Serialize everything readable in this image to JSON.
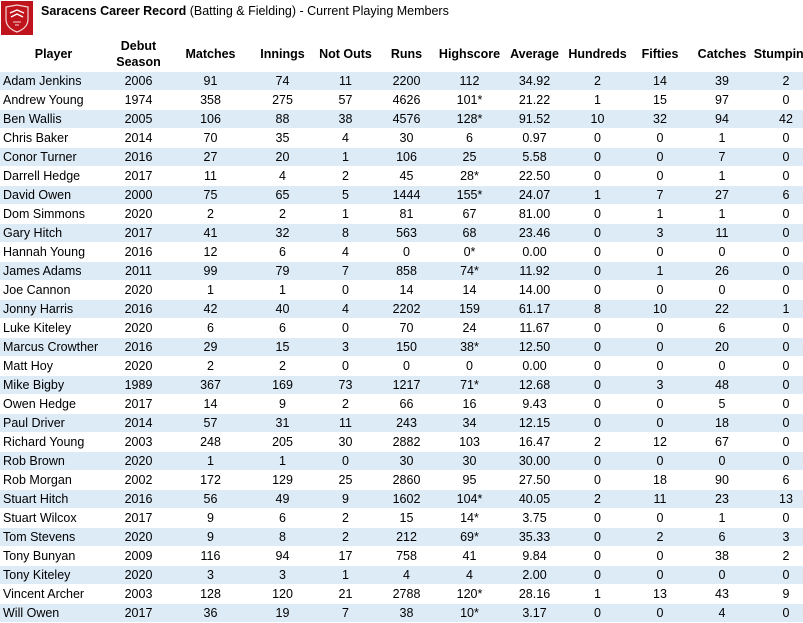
{
  "header": {
    "title_bold": "Saracens Career Record",
    "title_rest": " (Batting & Fielding) - Current Playing Members"
  },
  "colors": {
    "band": "#ddebf7",
    "logo": "#c0141c"
  },
  "columns": [
    "Player",
    "Debut Season",
    "Matches",
    "Innings",
    "Not Outs",
    "Runs",
    "Highscore",
    "Average",
    "Hundreds",
    "Fifties",
    "Catches",
    "Stumpings"
  ],
  "rows": [
    [
      "Adam Jenkins",
      "2006",
      "91",
      "74",
      "11",
      "2200",
      "112",
      "34.92",
      "2",
      "14",
      "39",
      "2"
    ],
    [
      "Andrew Young",
      "1974",
      "358",
      "275",
      "57",
      "4626",
      "101*",
      "21.22",
      "1",
      "15",
      "97",
      "0"
    ],
    [
      "Ben Wallis",
      "2005",
      "106",
      "88",
      "38",
      "4576",
      "128*",
      "91.52",
      "10",
      "32",
      "94",
      "42"
    ],
    [
      "Chris Baker",
      "2014",
      "70",
      "35",
      "4",
      "30",
      "6",
      "0.97",
      "0",
      "0",
      "1",
      "0"
    ],
    [
      "Conor Turner",
      "2016",
      "27",
      "20",
      "1",
      "106",
      "25",
      "5.58",
      "0",
      "0",
      "7",
      "0"
    ],
    [
      "Darrell Hedge",
      "2017",
      "11",
      "4",
      "2",
      "45",
      "28*",
      "22.50",
      "0",
      "0",
      "1",
      "0"
    ],
    [
      "David Owen",
      "2000",
      "75",
      "65",
      "5",
      "1444",
      "155*",
      "24.07",
      "1",
      "7",
      "27",
      "6"
    ],
    [
      "Dom Simmons",
      "2020",
      "2",
      "2",
      "1",
      "81",
      "67",
      "81.00",
      "0",
      "1",
      "1",
      "0"
    ],
    [
      "Gary Hitch",
      "2017",
      "41",
      "32",
      "8",
      "563",
      "68",
      "23.46",
      "0",
      "3",
      "11",
      "0"
    ],
    [
      "Hannah Young",
      "2016",
      "12",
      "6",
      "4",
      "0",
      "0*",
      "0.00",
      "0",
      "0",
      "0",
      "0"
    ],
    [
      "James Adams",
      "2011",
      "99",
      "79",
      "7",
      "858",
      "74*",
      "11.92",
      "0",
      "1",
      "26",
      "0"
    ],
    [
      "Joe Cannon",
      "2020",
      "1",
      "1",
      "0",
      "14",
      "14",
      "14.00",
      "0",
      "0",
      "0",
      "0"
    ],
    [
      "Jonny Harris",
      "2016",
      "42",
      "40",
      "4",
      "2202",
      "159",
      "61.17",
      "8",
      "10",
      "22",
      "1"
    ],
    [
      "Luke Kiteley",
      "2020",
      "6",
      "6",
      "0",
      "70",
      "24",
      "11.67",
      "0",
      "0",
      "6",
      "0"
    ],
    [
      "Marcus Crowther",
      "2016",
      "29",
      "15",
      "3",
      "150",
      "38*",
      "12.50",
      "0",
      "0",
      "20",
      "0"
    ],
    [
      "Matt Hoy",
      "2020",
      "2",
      "2",
      "0",
      "0",
      "0",
      "0.00",
      "0",
      "0",
      "0",
      "0"
    ],
    [
      "Mike Bigby",
      "1989",
      "367",
      "169",
      "73",
      "1217",
      "71*",
      "12.68",
      "0",
      "3",
      "48",
      "0"
    ],
    [
      "Owen Hedge",
      "2017",
      "14",
      "9",
      "2",
      "66",
      "16",
      "9.43",
      "0",
      "0",
      "5",
      "0"
    ],
    [
      "Paul Driver",
      "2014",
      "57",
      "31",
      "11",
      "243",
      "34",
      "12.15",
      "0",
      "0",
      "18",
      "0"
    ],
    [
      "Richard Young",
      "2003",
      "248",
      "205",
      "30",
      "2882",
      "103",
      "16.47",
      "2",
      "12",
      "67",
      "0"
    ],
    [
      "Rob Brown",
      "2020",
      "1",
      "1",
      "0",
      "30",
      "30",
      "30.00",
      "0",
      "0",
      "0",
      "0"
    ],
    [
      "Rob Morgan",
      "2002",
      "172",
      "129",
      "25",
      "2860",
      "95",
      "27.50",
      "0",
      "18",
      "90",
      "6"
    ],
    [
      "Stuart Hitch",
      "2016",
      "56",
      "49",
      "9",
      "1602",
      "104*",
      "40.05",
      "2",
      "11",
      "23",
      "13"
    ],
    [
      "Stuart Wilcox",
      "2017",
      "9",
      "6",
      "2",
      "15",
      "14*",
      "3.75",
      "0",
      "0",
      "1",
      "0"
    ],
    [
      "Tom Stevens",
      "2020",
      "9",
      "8",
      "2",
      "212",
      "69*",
      "35.33",
      "0",
      "2",
      "6",
      "3"
    ],
    [
      "Tony Bunyan",
      "2009",
      "116",
      "94",
      "17",
      "758",
      "41",
      "9.84",
      "0",
      "0",
      "38",
      "2"
    ],
    [
      "Tony Kiteley",
      "2020",
      "3",
      "3",
      "1",
      "4",
      "4",
      "2.00",
      "0",
      "0",
      "0",
      "0"
    ],
    [
      "Vincent Archer",
      "2003",
      "128",
      "120",
      "21",
      "2788",
      "120*",
      "28.16",
      "1",
      "13",
      "43",
      "9"
    ],
    [
      "Will Owen",
      "2017",
      "36",
      "19",
      "7",
      "38",
      "10*",
      "3.17",
      "0",
      "0",
      "4",
      "0"
    ]
  ]
}
